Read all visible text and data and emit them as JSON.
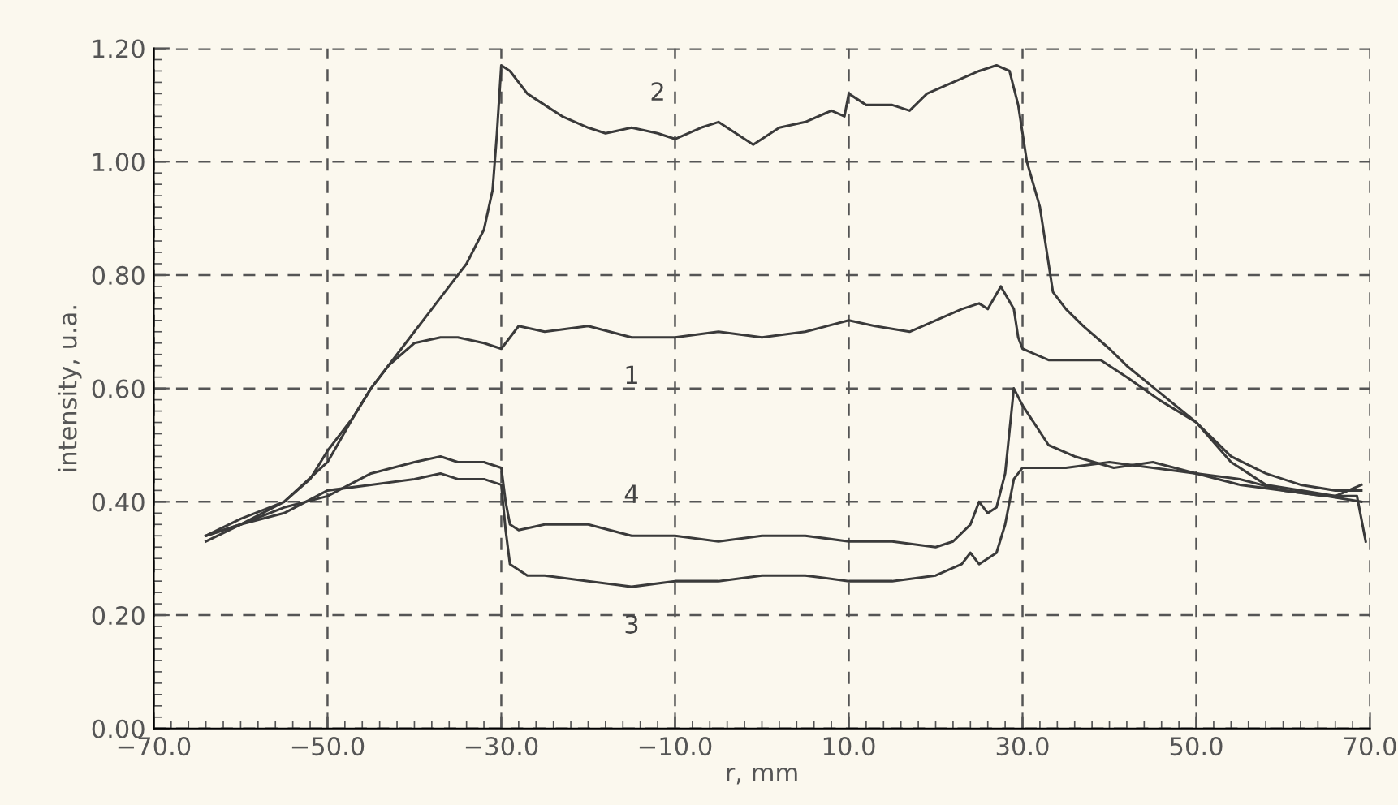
{
  "chart_data": {
    "type": "line",
    "xlabel": "r, mm",
    "ylabel": "intensity, u.a.",
    "xlim": [
      -70,
      70
    ],
    "ylim": [
      0,
      1.2
    ],
    "xticks": [
      {
        "value": -70,
        "label": "−70.0"
      },
      {
        "value": -50,
        "label": "−50.0"
      },
      {
        "value": -30,
        "label": "−30.0"
      },
      {
        "value": -10,
        "label": "−10.0"
      },
      {
        "value": 10,
        "label": "10.0"
      },
      {
        "value": 30,
        "label": "30.0"
      },
      {
        "value": 50,
        "label": "50.0"
      },
      {
        "value": 70,
        "label": "70.0"
      }
    ],
    "yticks": [
      {
        "value": 0,
        "label": "0.00"
      },
      {
        "value": 0.2,
        "label": "0.20"
      },
      {
        "value": 0.4,
        "label": "0.40"
      },
      {
        "value": 0.6,
        "label": "0.60"
      },
      {
        "value": 0.8,
        "label": "0.80"
      },
      {
        "value": 1.0,
        "label": "1.00"
      },
      {
        "value": 1.2,
        "label": "1.20"
      }
    ],
    "grid": true,
    "line_style": "solid",
    "marker": "none",
    "legend": false,
    "series": [
      {
        "name": "1",
        "color": "#3a3a3a",
        "x": [
          -64,
          -60,
          -55,
          -50,
          -47,
          -45,
          -43,
          -40,
          -37,
          -35,
          -32,
          -30,
          -28,
          -25,
          -20,
          -15,
          -10,
          -5,
          0,
          5,
          10,
          13,
          17,
          20,
          23,
          25,
          26,
          27.5,
          29,
          29.5,
          30,
          33,
          36,
          39,
          42,
          45.7,
          50,
          54,
          58,
          62,
          66,
          69
        ],
        "values": [
          0.34,
          0.36,
          0.4,
          0.47,
          0.55,
          0.6,
          0.64,
          0.68,
          0.69,
          0.69,
          0.68,
          0.67,
          0.71,
          0.7,
          0.71,
          0.69,
          0.69,
          0.7,
          0.69,
          0.7,
          0.72,
          0.71,
          0.7,
          0.72,
          0.74,
          0.75,
          0.74,
          0.78,
          0.74,
          0.69,
          0.67,
          0.65,
          0.65,
          0.65,
          0.62,
          0.58,
          0.54,
          0.48,
          0.45,
          0.43,
          0.42,
          0.42
        ]
      },
      {
        "name": "2",
        "color": "#3a3a3a",
        "x": [
          -64,
          -60,
          -55,
          -52,
          -50,
          -47,
          -45,
          -42,
          -40,
          -38,
          -36,
          -34,
          -32,
          -31,
          -30.5,
          -30,
          -29,
          -27,
          -25,
          -23,
          -20,
          -18,
          -15,
          -12,
          -10,
          -7,
          -5,
          -3,
          -1,
          2,
          5,
          8,
          9.5,
          10,
          12,
          15,
          17,
          19,
          22,
          25,
          27,
          28.5,
          29.5,
          30.5,
          32,
          33.5,
          35,
          37,
          40,
          42,
          46,
          50,
          54,
          58,
          62,
          66,
          69
        ],
        "values": [
          0.34,
          0.37,
          0.4,
          0.44,
          0.49,
          0.55,
          0.6,
          0.66,
          0.7,
          0.74,
          0.78,
          0.82,
          0.88,
          0.95,
          1.05,
          1.17,
          1.16,
          1.12,
          1.1,
          1.08,
          1.06,
          1.05,
          1.06,
          1.05,
          1.04,
          1.06,
          1.07,
          1.05,
          1.03,
          1.06,
          1.07,
          1.09,
          1.08,
          1.12,
          1.1,
          1.1,
          1.09,
          1.12,
          1.14,
          1.16,
          1.17,
          1.16,
          1.1,
          1.0,
          0.92,
          0.77,
          0.74,
          0.71,
          0.67,
          0.64,
          0.59,
          0.54,
          0.47,
          0.43,
          0.42,
          0.41,
          0.43
        ]
      },
      {
        "name": "3",
        "color": "#3a3a3a",
        "x": [
          -64,
          -60,
          -55,
          -50,
          -45,
          -40,
          -37,
          -35,
          -32,
          -30,
          -29.5,
          -29,
          -27,
          -25,
          -20,
          -15,
          -10,
          -5,
          0,
          5,
          10,
          15,
          20,
          23,
          24,
          25,
          27,
          28,
          29,
          30,
          35,
          40,
          45,
          50,
          55,
          60,
          65,
          69
        ],
        "values": [
          0.33,
          0.36,
          0.38,
          0.42,
          0.43,
          0.44,
          0.45,
          0.44,
          0.44,
          0.43,
          0.35,
          0.29,
          0.27,
          0.27,
          0.26,
          0.25,
          0.26,
          0.26,
          0.27,
          0.27,
          0.26,
          0.26,
          0.27,
          0.29,
          0.31,
          0.29,
          0.31,
          0.36,
          0.44,
          0.46,
          0.46,
          0.47,
          0.46,
          0.45,
          0.43,
          0.42,
          0.41,
          0.4
        ]
      },
      {
        "name": "4",
        "color": "#3a3a3a",
        "x": [
          -64,
          -60,
          -55,
          -50,
          -45,
          -40,
          -37,
          -35,
          -32,
          -30,
          -29.5,
          -29,
          -28,
          -25,
          -20,
          -15,
          -10,
          -5,
          0,
          5,
          10,
          15,
          20,
          22,
          24,
          25,
          26,
          27,
          28,
          29,
          30,
          33,
          36,
          40.5,
          45,
          50,
          55,
          60,
          65,
          68.5,
          69.5
        ],
        "values": [
          0.34,
          0.36,
          0.39,
          0.41,
          0.45,
          0.47,
          0.48,
          0.47,
          0.47,
          0.46,
          0.4,
          0.36,
          0.35,
          0.36,
          0.36,
          0.34,
          0.34,
          0.33,
          0.34,
          0.34,
          0.33,
          0.33,
          0.32,
          0.33,
          0.36,
          0.4,
          0.38,
          0.39,
          0.45,
          0.6,
          0.57,
          0.5,
          0.48,
          0.46,
          0.47,
          0.45,
          0.44,
          0.42,
          0.41,
          0.41,
          0.33
        ]
      }
    ]
  }
}
